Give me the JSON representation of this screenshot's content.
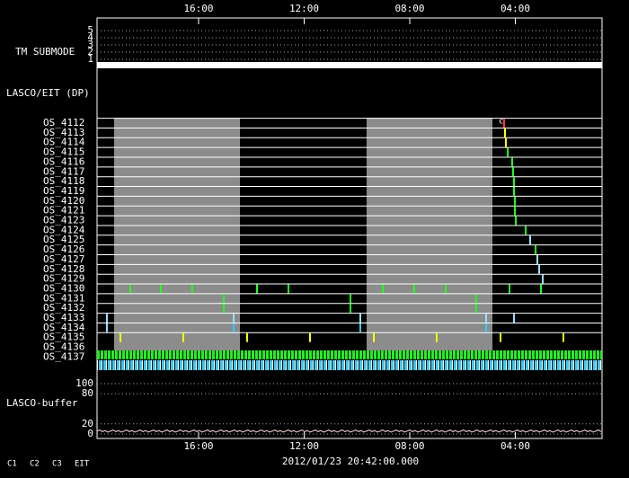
{
  "top_axis": {
    "ticks": [
      "16:00",
      "12:00",
      "08:00",
      "04:00"
    ]
  },
  "submode": {
    "label": "TM SUBMODE",
    "levels": [
      5,
      4,
      3,
      2,
      1
    ]
  },
  "lasco": {
    "label": "LASCO/EIT (DP)",
    "marker": "c",
    "rows": [
      "OS_4112",
      "OS_4113",
      "OS_4114",
      "OS_4115",
      "OS_4116",
      "OS_4117",
      "OS_4118",
      "OS_4119",
      "OS_4120",
      "OS_4121",
      "OS_4123",
      "OS_4124",
      "OS_4125",
      "OS_4126",
      "OS_4127",
      "OS_4128",
      "OS_4129",
      "OS_4130",
      "OS_4131",
      "OS_4132",
      "OS_4133",
      "OS_4134",
      "OS_4135",
      "OS_4136",
      "OS_4137"
    ]
  },
  "buffer": {
    "label": "LASCO-buffer",
    "ticks": [
      100,
      80,
      20,
      0
    ]
  },
  "bottom_axis": {
    "ticks": [
      "16:00",
      "12:00",
      "08:00",
      "04:00"
    ]
  },
  "timestamp": "2012/01/23 20:42:00.000",
  "legend": [
    {
      "label": "C1",
      "color": "#ff2020"
    },
    {
      "label": "C2",
      "color": "#20ff20"
    },
    {
      "label": "C3",
      "color": "#40d0ff"
    },
    {
      "label": "EIT",
      "color": "#ffffff"
    }
  ]
}
